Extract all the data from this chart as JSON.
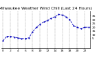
{
  "title": "Milwaukee Weather Wind Chill (Last 24 Hours)",
  "line_color": "#0000BB",
  "bg_color": "#ffffff",
  "plot_bg": "#ffffff",
  "grid_color": "#888888",
  "x_values": [
    0,
    1,
    2,
    3,
    4,
    5,
    6,
    7,
    8,
    9,
    10,
    11,
    12,
    13,
    14,
    15,
    16,
    17,
    18,
    19,
    20,
    21,
    22,
    23
  ],
  "y_values": [
    2,
    8,
    8,
    7,
    6,
    5,
    5,
    6,
    14,
    20,
    24,
    27,
    29,
    32,
    34,
    37,
    36,
    34,
    30,
    22,
    20,
    18,
    20,
    20
  ],
  "ylim": [
    -8,
    42
  ],
  "xlim": [
    -0.5,
    23.5
  ],
  "ytick_values": [
    5,
    10,
    15,
    20,
    25,
    30,
    35
  ],
  "ytick_labels": [
    "5",
    "10",
    "15",
    "20",
    "25",
    "30",
    "35"
  ],
  "xtick_positions": [
    0,
    2,
    4,
    6,
    8,
    10,
    12,
    14,
    16,
    18,
    20,
    22
  ],
  "xtick_labels": [
    "0",
    "2",
    "4",
    "6",
    "8",
    "10",
    "12",
    "14",
    "16",
    "18",
    "20",
    "22"
  ],
  "title_fontsize": 4.2,
  "tick_fontsize": 3.2,
  "line_width": 0.6,
  "marker_size": 1.2
}
